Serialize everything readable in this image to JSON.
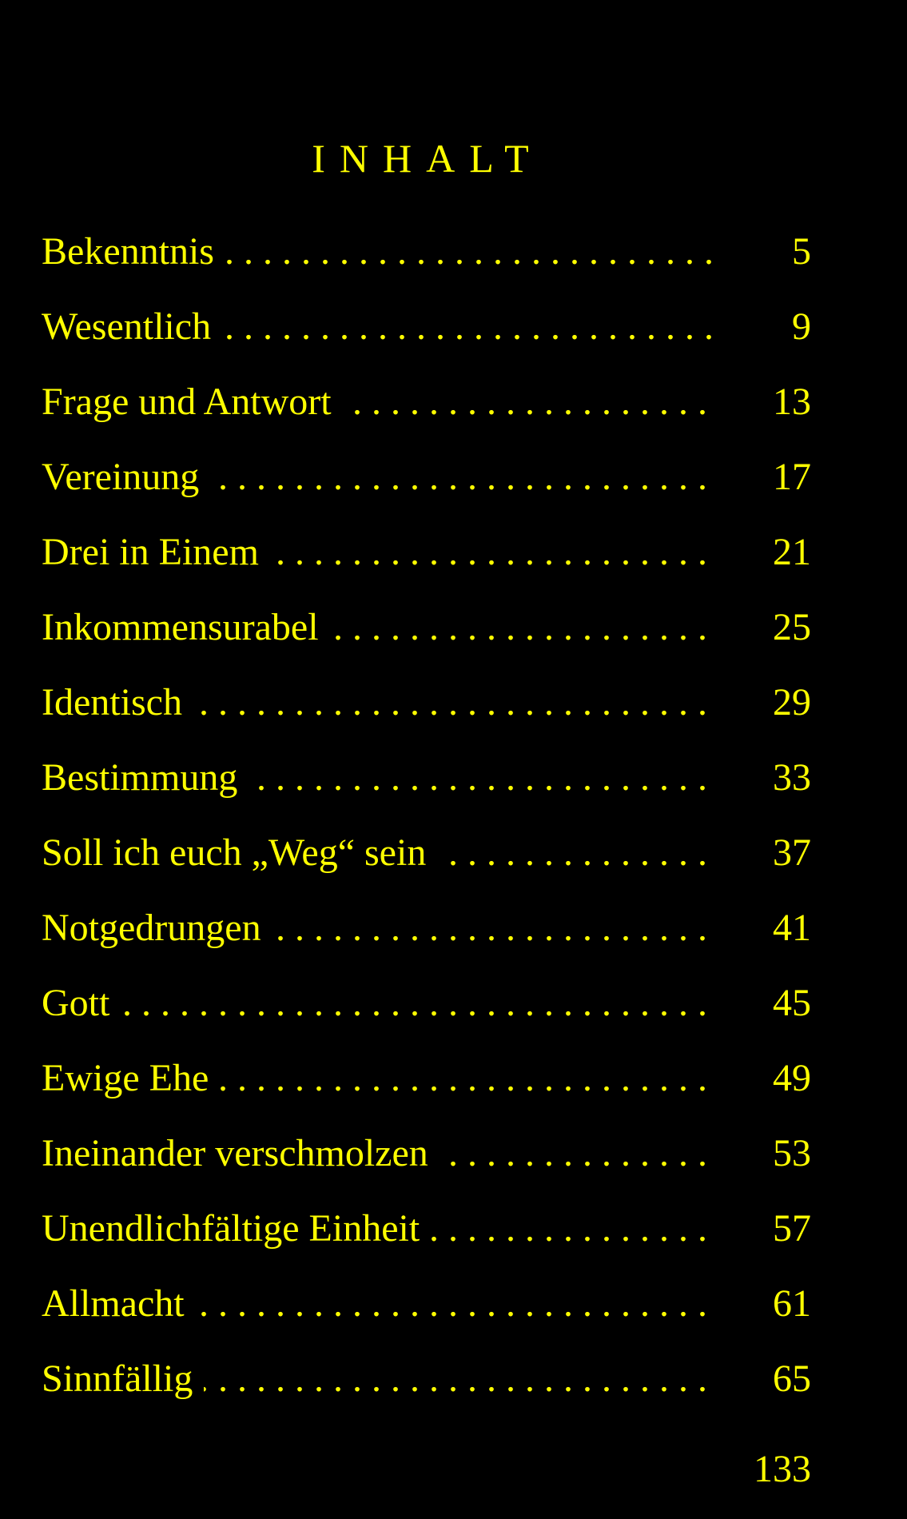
{
  "colors": {
    "background": "#000000",
    "text": "#FFFF00"
  },
  "title": "INHALT",
  "entries": [
    {
      "title": "Bekenntnis",
      "page": "5"
    },
    {
      "title": "Wesentlich",
      "page": "9"
    },
    {
      "title": "Frage und Antwort",
      "page": "13"
    },
    {
      "title": "Vereinung",
      "page": "17"
    },
    {
      "title": "Drei in Einem",
      "page": "21"
    },
    {
      "title": "Inkommensurabel",
      "page": "25"
    },
    {
      "title": "Identisch",
      "page": "29"
    },
    {
      "title": "Bestimmung",
      "page": "33"
    },
    {
      "title": "Soll ich euch „Weg“ sein",
      "page": "37"
    },
    {
      "title": "Notgedrungen",
      "page": "41"
    },
    {
      "title": "Gott",
      "page": "45"
    },
    {
      "title": "Ewige Ehe",
      "page": "49"
    },
    {
      "title": "Ineinander verschmolzen",
      "page": "53"
    },
    {
      "title": "Unendlichfältige Einheit",
      "page": "57"
    },
    {
      "title": "Allmacht",
      "page": "61"
    },
    {
      "title": "Sinnfällig",
      "page": "65"
    }
  ],
  "page_number": "133"
}
